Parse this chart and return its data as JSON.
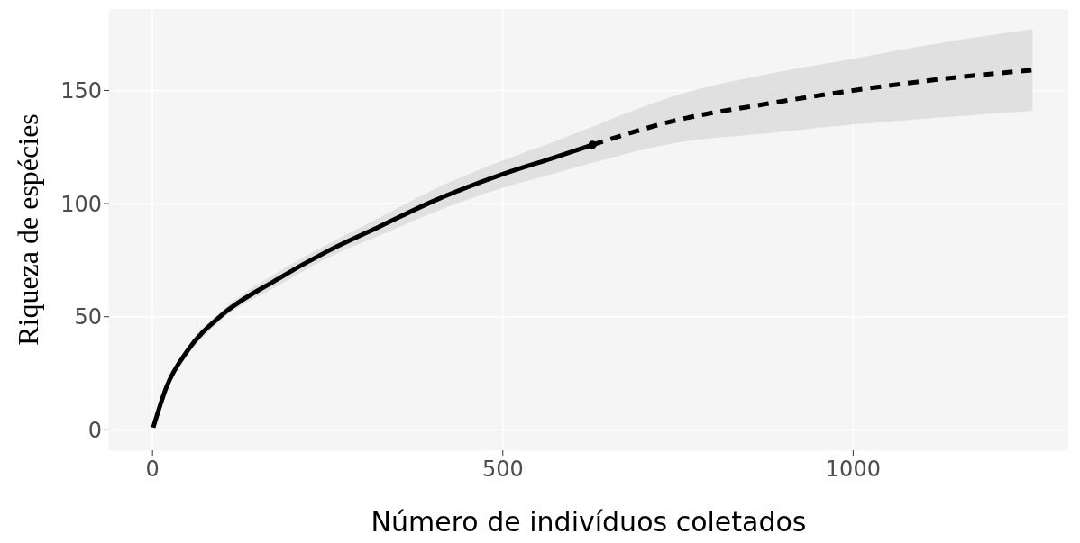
{
  "chart_data": {
    "type": "line",
    "xlabel": "Número de indivíduos coletados",
    "ylabel": "Riqueza de espécies",
    "xlim": [
      -62,
      1307
    ],
    "ylim": [
      -9,
      186
    ],
    "xticks": [
      0,
      500,
      1000
    ],
    "yticks": [
      0,
      50,
      100,
      150
    ],
    "grid": true,
    "series": [
      {
        "color": "#000000",
        "line_style": "solid",
        "marker": "none",
        "x": [
          1,
          20,
          50,
          100,
          175,
          250,
          325,
          400,
          500,
          570,
          628
        ],
        "values": [
          1,
          19,
          35,
          51,
          66,
          79,
          90,
          101,
          113,
          120,
          126
        ],
        "lower": [
          1,
          18,
          33,
          49,
          63,
          76,
          86,
          96,
          107,
          113,
          118
        ],
        "upper": [
          1,
          20,
          37,
          53,
          69,
          82,
          94,
          106,
          119,
          127,
          134
        ]
      },
      {
        "color": "#000000",
        "line_style": "dashed",
        "marker": "none",
        "x": [
          628,
          750,
          875,
          1000,
          1125,
          1256
        ],
        "values": [
          126,
          137,
          144,
          150,
          155,
          159
        ],
        "lower": [
          118,
          127,
          131,
          135,
          138,
          141
        ],
        "upper": [
          134,
          148,
          157,
          164,
          171,
          177
        ]
      },
      {
        "type": "scatter",
        "color": "#000000",
        "marker": "circle",
        "x": [
          628
        ],
        "values": [
          126
        ]
      }
    ]
  }
}
